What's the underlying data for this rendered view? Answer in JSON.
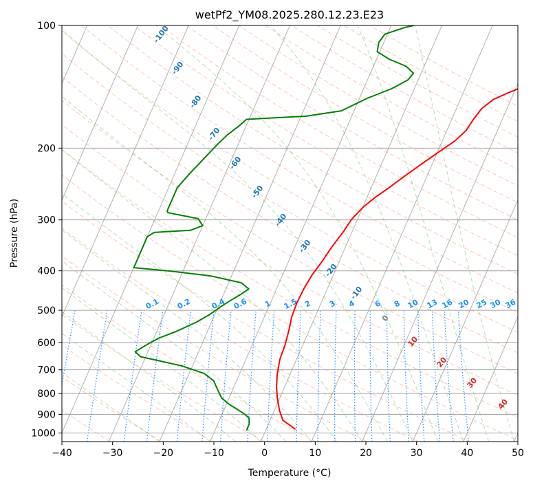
{
  "chart_data": {
    "type": "line",
    "title": "wetPf2_YM08.2025.280.12.23.E23",
    "xlabel": "Temperature (°C)",
    "ylabel": "Pressure (hPa)",
    "xlim": [
      -40,
      50
    ],
    "ylim": [
      1050,
      100
    ],
    "y_scale": "log",
    "x_ticks": [
      -40,
      -30,
      -20,
      -10,
      0,
      10,
      20,
      30,
      40,
      50
    ],
    "y_ticks": [
      100,
      200,
      300,
      400,
      500,
      600,
      700,
      800,
      900,
      1000
    ],
    "grid": true,
    "series": [
      {
        "color": "#ff0000",
        "points": [
          [
            5.8,
            980
          ],
          [
            4.5,
            960
          ],
          [
            2.5,
            930
          ],
          [
            1.0,
            880
          ],
          [
            -0.5,
            820
          ],
          [
            -1.6,
            770
          ],
          [
            -2.5,
            720
          ],
          [
            -3.3,
            660
          ],
          [
            -3.5,
            610
          ],
          [
            -4.0,
            560
          ],
          [
            -4.6,
            520
          ],
          [
            -4.8,
            480
          ],
          [
            -4.6,
            440
          ],
          [
            -4.2,
            410
          ],
          [
            -3.4,
            380
          ],
          [
            -2.7,
            350
          ],
          [
            -1.7,
            320
          ],
          [
            -1.2,
            300
          ],
          [
            0.0,
            280
          ],
          [
            1.5,
            265
          ],
          [
            3.5,
            250
          ],
          [
            5.5,
            235
          ],
          [
            8.0,
            218
          ],
          [
            10.5,
            203
          ],
          [
            12.5,
            192
          ],
          [
            13.8,
            181
          ],
          [
            14.3,
            170
          ],
          [
            15.0,
            160
          ],
          [
            16.5,
            152
          ],
          [
            19.0,
            146
          ],
          [
            22.0,
            140
          ],
          [
            24.5,
            134
          ],
          [
            27.0,
            128
          ],
          [
            29.5,
            122
          ],
          [
            32.5,
            115
          ],
          [
            33.5,
            110
          ],
          [
            33.6,
            104
          ],
          [
            33.3,
            100
          ]
        ]
      },
      {
        "color": "#008000",
        "points": [
          [
            -3.8,
            985
          ],
          [
            -3.8,
            950
          ],
          [
            -4.3,
            920
          ],
          [
            -5.5,
            900
          ],
          [
            -7.0,
            880
          ],
          [
            -9.5,
            850
          ],
          [
            -11.5,
            820
          ],
          [
            -12.5,
            795
          ],
          [
            -13.5,
            770
          ],
          [
            -14.5,
            745
          ],
          [
            -17.0,
            715
          ],
          [
            -22.0,
            685
          ],
          [
            -27.0,
            665
          ],
          [
            -31.0,
            650
          ],
          [
            -32.5,
            632
          ],
          [
            -31.5,
            617
          ],
          [
            -30.5,
            603
          ],
          [
            -29.0,
            585
          ],
          [
            -26.0,
            562
          ],
          [
            -23.0,
            535
          ],
          [
            -21.0,
            512
          ],
          [
            -19.5,
            490
          ],
          [
            -18.0,
            472
          ],
          [
            -16.5,
            456
          ],
          [
            -15.5,
            443
          ],
          [
            -17.5,
            428
          ],
          [
            -24.0,
            412
          ],
          [
            -33.0,
            400
          ],
          [
            -40.0,
            393
          ],
          [
            -40.0,
            330
          ],
          [
            -39.0,
            322
          ],
          [
            -32.0,
            318
          ],
          [
            -30.0,
            310
          ],
          [
            -31.5,
            298
          ],
          [
            -38.0,
            288
          ],
          [
            -38.3,
            285
          ],
          [
            -38.3,
            250
          ],
          [
            -37.0,
            230
          ],
          [
            -36.0,
            218
          ],
          [
            -35.0,
            206
          ],
          [
            -34.0,
            195
          ],
          [
            -33.0,
            186
          ],
          [
            -31.5,
            177
          ],
          [
            -30.5,
            170
          ],
          [
            -19.0,
            167
          ],
          [
            -12.5,
            162
          ],
          [
            -8.5,
            151
          ],
          [
            -4.5,
            143
          ],
          [
            -2.0,
            136
          ],
          [
            -1.5,
            131
          ],
          [
            -3.5,
            126
          ],
          [
            -7.5,
            121
          ],
          [
            -10.5,
            116
          ],
          [
            -11.0,
            110
          ],
          [
            -10.5,
            105
          ],
          [
            -7.0,
            101
          ],
          [
            -5.5,
            100
          ]
        ]
      }
    ],
    "dry_adiabat_labels": [
      "-100",
      "-90",
      "-80",
      "-70",
      "-60",
      "-50",
      "-40",
      "-30",
      "-20",
      "-10"
    ],
    "mixing_ratio_labels": [
      "0.1",
      "0.2",
      "0.4",
      "0.6",
      "1",
      "1.5",
      "2",
      "3",
      "4",
      "6",
      "8",
      "10",
      "13",
      "16",
      "20",
      "25",
      "30",
      "36"
    ],
    "moist_adiabat_labels": [
      "0",
      "10",
      "20",
      "30",
      "40"
    ],
    "colors": {
      "isotherm": "#b0b0b0",
      "dry_adiabat": "#ff7f50",
      "moist_adiabat": "#2ca02c",
      "mixing_ratio": "#1e90ff",
      "dry_label": "#1f77b4",
      "moist_label": "#d62728",
      "temperature": "#ff0000",
      "dewpoint": "#008000"
    }
  }
}
